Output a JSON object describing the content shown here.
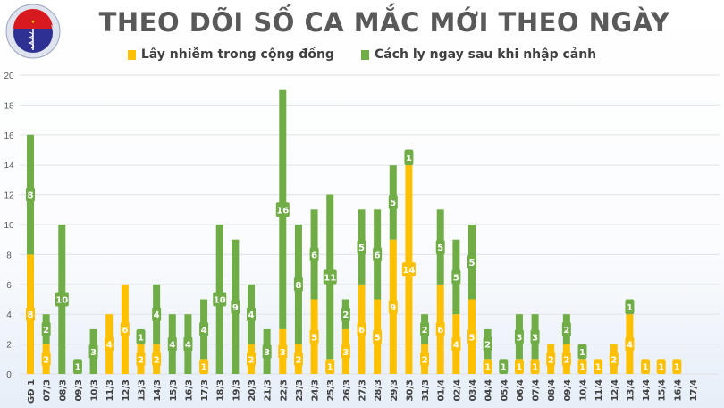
{
  "logo": {
    "text_top": "BỘ Y TẾ",
    "text_bottom": "MINISTRY OF HEALTH"
  },
  "chart_data": {
    "type": "bar",
    "stacked": true,
    "title": "THEO DÕI SỐ CA MẮC MỚI THEO NGÀY",
    "xlabel": "",
    "ylabel": "",
    "ylim": [
      0,
      20
    ],
    "yticks": [
      0,
      2,
      4,
      6,
      8,
      10,
      12,
      14,
      16,
      18,
      20
    ],
    "grid": true,
    "legend": "top-center",
    "categories": [
      "GĐ 1",
      "07/3",
      "08/3",
      "09/3",
      "10/3",
      "11/3",
      "12/3",
      "13/3",
      "14/3",
      "15/3",
      "16/3",
      "17/3",
      "18/3",
      "19/3",
      "20/3",
      "21/3",
      "22/3",
      "23/3",
      "24/3",
      "25/3",
      "26/3",
      "27/3",
      "28/3",
      "29/3",
      "30/3",
      "31/3",
      "01/4",
      "02/4",
      "03/4",
      "04/4",
      "05/4",
      "06/4",
      "07/4",
      "08/4",
      "09/4",
      "10/4",
      "11/4",
      "12/4",
      "13/4",
      "14/4",
      "15/4",
      "16/4",
      "17/4"
    ],
    "series": [
      {
        "name": "Lây nhiễm trong cộng đồng",
        "color": "#ffc000",
        "values": [
          8,
          2,
          0,
          0,
          0,
          4,
          6,
          2,
          2,
          0,
          0,
          1,
          0,
          0,
          2,
          0,
          3,
          2,
          5,
          1,
          3,
          6,
          5,
          9,
          14,
          2,
          6,
          4,
          5,
          1,
          0,
          1,
          1,
          2,
          2,
          1,
          1,
          2,
          4,
          1,
          1,
          1,
          0
        ]
      },
      {
        "name": "Cách ly ngay sau khi nhập cảnh",
        "color": "#70ad47",
        "values": [
          8,
          2,
          10,
          1,
          3,
          0,
          0,
          1,
          4,
          4,
          4,
          4,
          10,
          9,
          4,
          3,
          16,
          8,
          6,
          11,
          2,
          5,
          6,
          5,
          1,
          2,
          5,
          5,
          5,
          2,
          1,
          3,
          3,
          0,
          2,
          1,
          0,
          0,
          1,
          0,
          0,
          0,
          0
        ]
      }
    ]
  }
}
